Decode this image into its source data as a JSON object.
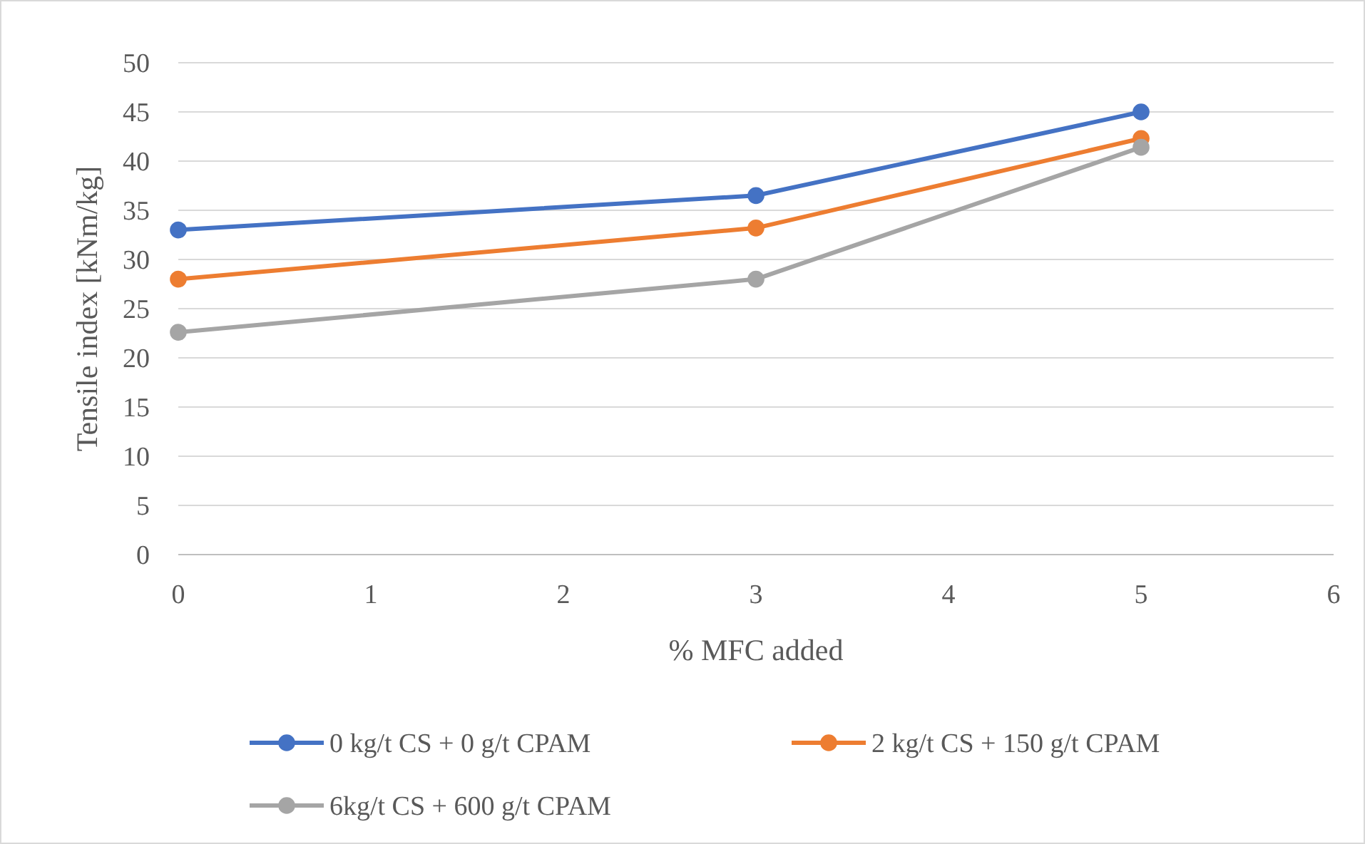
{
  "chart_data": {
    "type": "line",
    "xlabel": "% MFC added",
    "ylabel": "Tensile index  [kNm/kg]",
    "x": [
      0,
      3,
      5
    ],
    "xlim": [
      0,
      6
    ],
    "xticks": [
      0,
      1,
      2,
      3,
      4,
      5,
      6
    ],
    "ylim": [
      0,
      50
    ],
    "yticks": [
      0,
      5,
      10,
      15,
      20,
      25,
      30,
      35,
      40,
      45,
      50
    ],
    "grid": "y",
    "legend": "bottom",
    "marker": "circle",
    "series": [
      {
        "name": "0 kg/t CS + 0 g/t CPAM",
        "color": "#4472c4",
        "values": [
          33,
          36.5,
          45
        ]
      },
      {
        "name": "2 kg/t CS + 150 g/t CPAM",
        "color": "#ed7d31",
        "values": [
          28,
          33.2,
          42.3
        ]
      },
      {
        "name": "6kg/t CS + 600 g/t CPAM",
        "color": "#a5a5a5",
        "values": [
          22.6,
          28,
          41.4
        ]
      }
    ]
  }
}
